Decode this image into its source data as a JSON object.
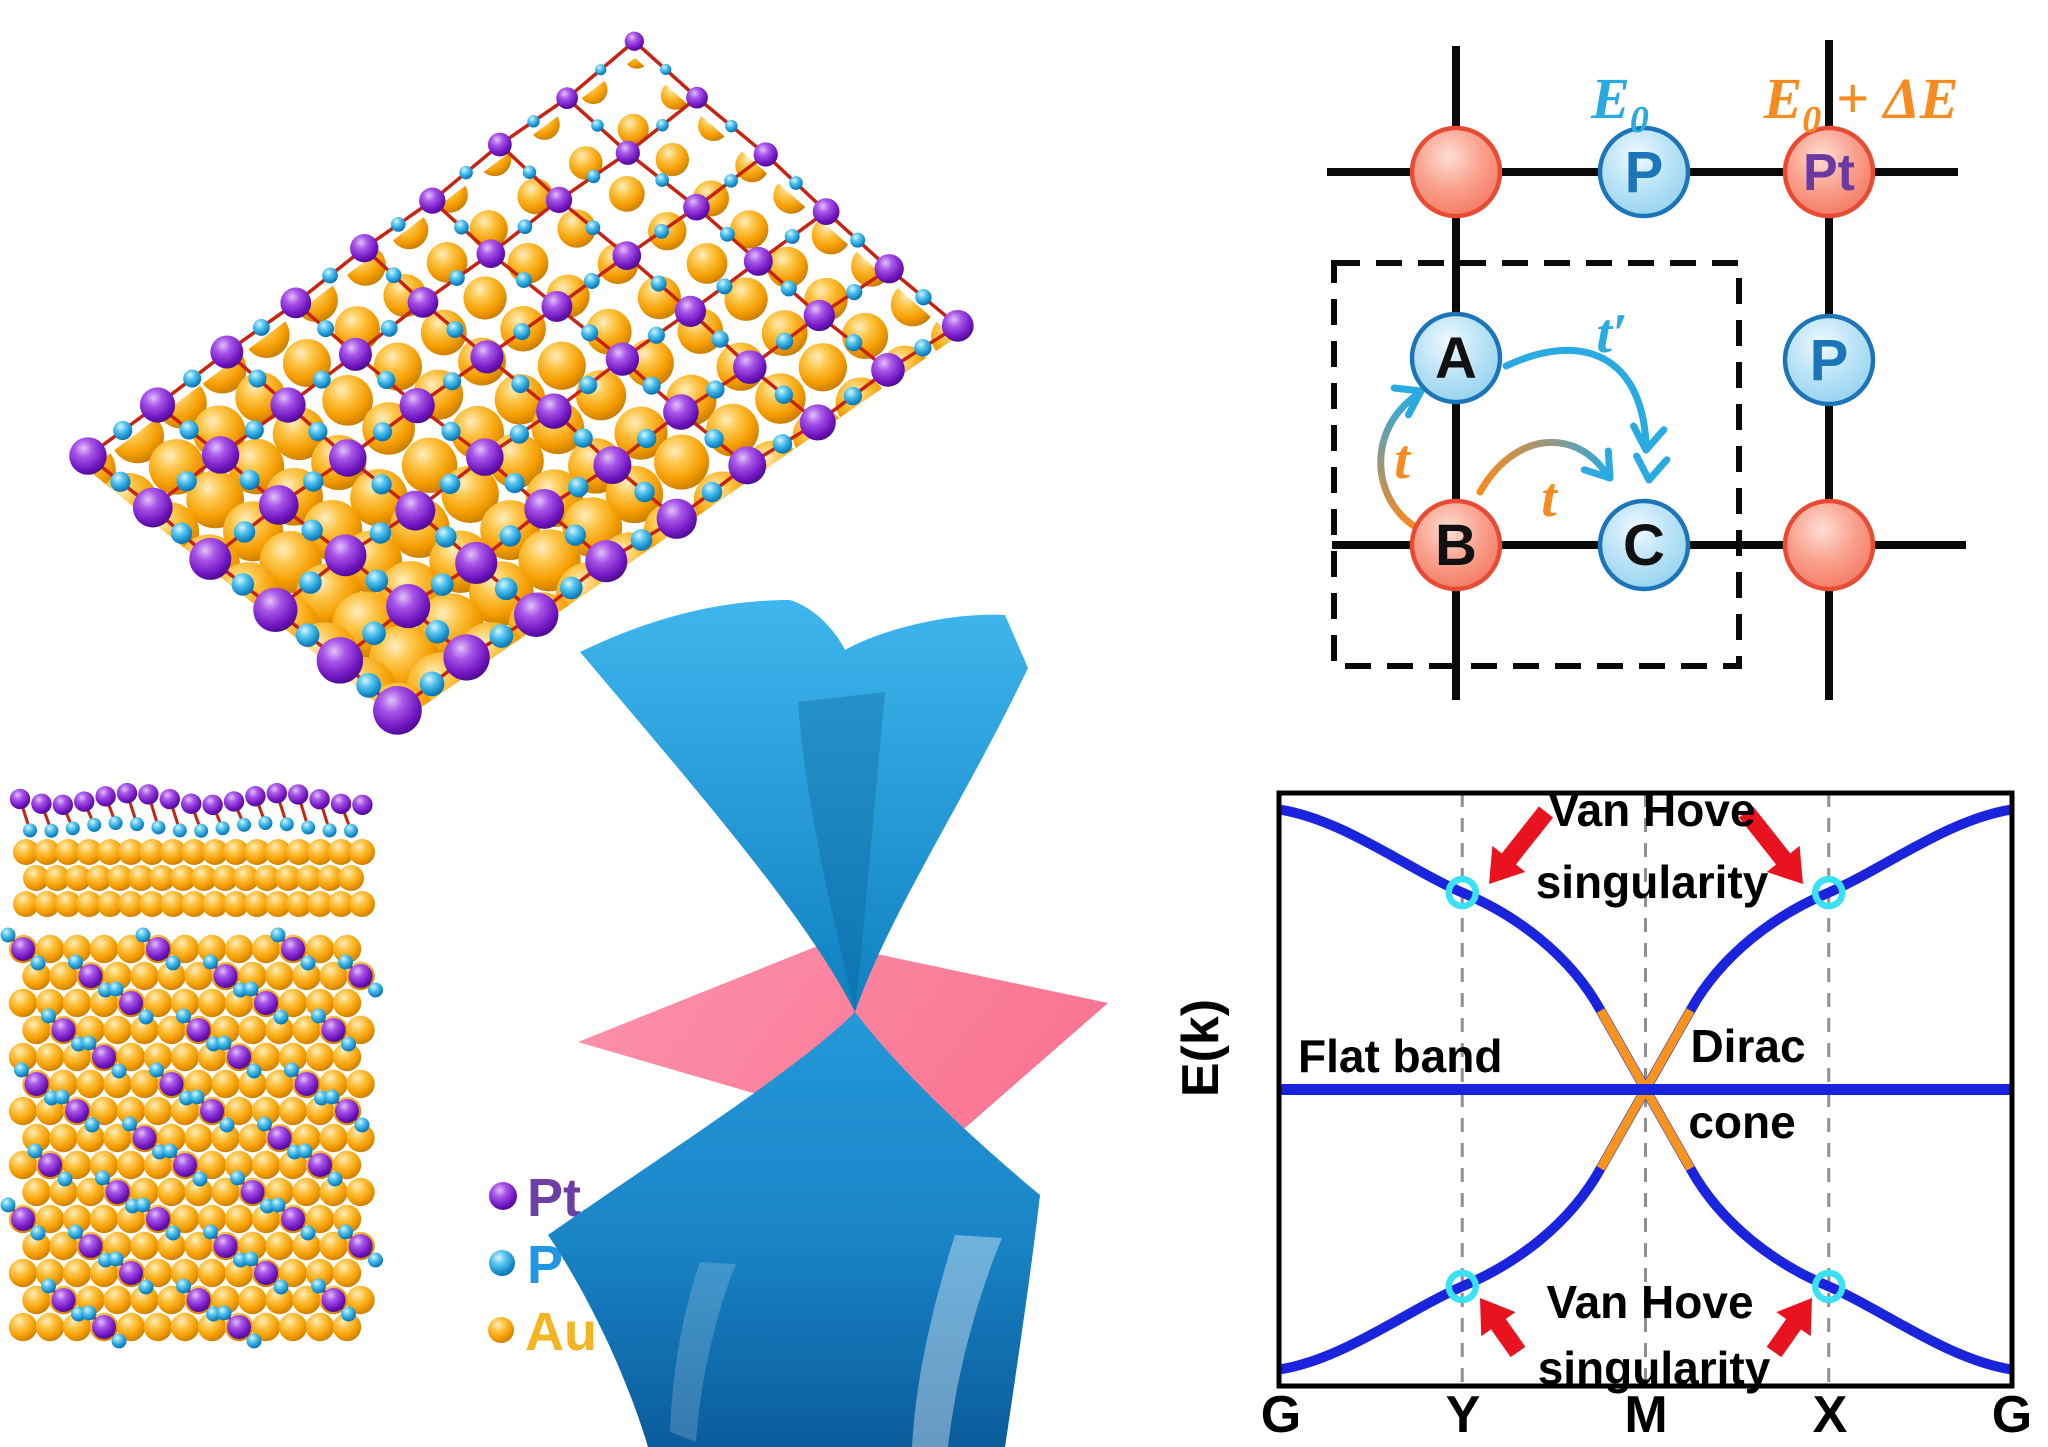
{
  "colors": {
    "background": "#ffffff",
    "gold": "#f9a602",
    "pt_purple": "#7d22cf",
    "p_cyan": "#1ba4dd",
    "bond_red": "#c62310",
    "legend_pt_text": "#6b3fa4",
    "legend_p_text": "#2196e3",
    "legend_au_text": "#f5b422",
    "site_red_stroke": "#e84b33",
    "site_blue_stroke": "#1b75b8",
    "site_letter_dark": "#111111",
    "site_letter_p": "#1b75b8",
    "site_letter_pt": "#6a3aa0",
    "energy_p_color": "#29abe2",
    "energy_pt_color": "#f68b21",
    "hop_t_color": "#f68b21",
    "hop_tprime_color": "#29abe2",
    "lattice_line": "#0a0a0a",
    "band_blue": "#1b24dd",
    "band_orange": "#f7941d",
    "vh_ring_cyan": "#38e1f4",
    "arrow_red": "#e9131f",
    "grid_gray": "#8f8f8f",
    "cone_blue": "#1795d6",
    "plane_pink": "#fb7e9b",
    "cone_magenta": "#f407a5"
  },
  "legend": {
    "items": [
      {
        "label": "Pt",
        "color": "#6b3fa4"
      },
      {
        "label": "P",
        "color": "#2196e3"
      },
      {
        "label": "Au",
        "color": "#f5b422"
      }
    ]
  },
  "lattice_model": {
    "sites": [
      {
        "label": "",
        "kind": "pt-site"
      },
      {
        "label": "P",
        "kind": "p-site"
      },
      {
        "label": "Pt",
        "kind": "pt-site"
      },
      {
        "label": "A",
        "kind": "p-site"
      },
      {
        "label": "B",
        "kind": "pt-site"
      },
      {
        "label": "C",
        "kind": "p-site"
      },
      {
        "label": "P",
        "kind": "p-site"
      },
      {
        "label": "",
        "kind": "pt-site"
      }
    ],
    "onsite_energy_p": {
      "base": "E",
      "sub": "0",
      "rest": ""
    },
    "onsite_energy_pt": {
      "base": "E",
      "sub": "0",
      "rest": " + ΔE"
    },
    "hopping": {
      "t_left": "t",
      "t_bottom": "t",
      "t_prime": "t′"
    }
  },
  "chart_data": {
    "type": "line",
    "title": "",
    "xlabel": "",
    "ylabel": "E(k)",
    "x_tick_labels": [
      "G",
      "Y",
      "M",
      "X",
      "G"
    ],
    "k_positions": [
      0,
      1,
      2,
      3,
      4
    ],
    "ylim": [
      -1.05,
      1.05
    ],
    "grid": "dashed vertical gridlines at Y, M, X",
    "legend_position": "none",
    "series": [
      {
        "name": "flat-band",
        "color": "#1b24dd",
        "points": [
          [
            0,
            0
          ],
          [
            4,
            0
          ]
        ]
      },
      {
        "name": "upper-band",
        "color": "#1b24dd",
        "points": [
          [
            0,
            0.943
          ],
          [
            1,
            0.663
          ],
          [
            2,
            0
          ],
          [
            3,
            0.663
          ],
          [
            4,
            0.943
          ]
        ]
      },
      {
        "name": "lower-band",
        "color": "#1b24dd",
        "points": [
          [
            0,
            -0.943
          ],
          [
            1,
            -0.663
          ],
          [
            2,
            0
          ],
          [
            3,
            -0.663
          ],
          [
            4,
            -0.943
          ]
        ]
      },
      {
        "name": "dirac-cone-linear-segments",
        "color": "#f7941d",
        "points": [
          [
            1.755,
            0.266
          ],
          [
            2,
            0
          ],
          [
            2.245,
            0.266
          ],
          [
            1.755,
            -0.266
          ],
          [
            2.245,
            -0.266
          ]
        ]
      }
    ],
    "van_hove_points": [
      {
        "k": 1,
        "E": 0.663
      },
      {
        "k": 3,
        "E": 0.663
      },
      {
        "k": 1,
        "E": -0.663
      },
      {
        "k": 3,
        "E": -0.663
      }
    ],
    "annotations": {
      "vh_top_line1": "Van Hove",
      "vh_top_line2": "singularity",
      "vh_bottom_line1": "Van Hove",
      "vh_bottom_line2": "singularity",
      "flat_band": "Flat band",
      "dirac_line1": "Dirac",
      "dirac_line2": "cone"
    }
  }
}
